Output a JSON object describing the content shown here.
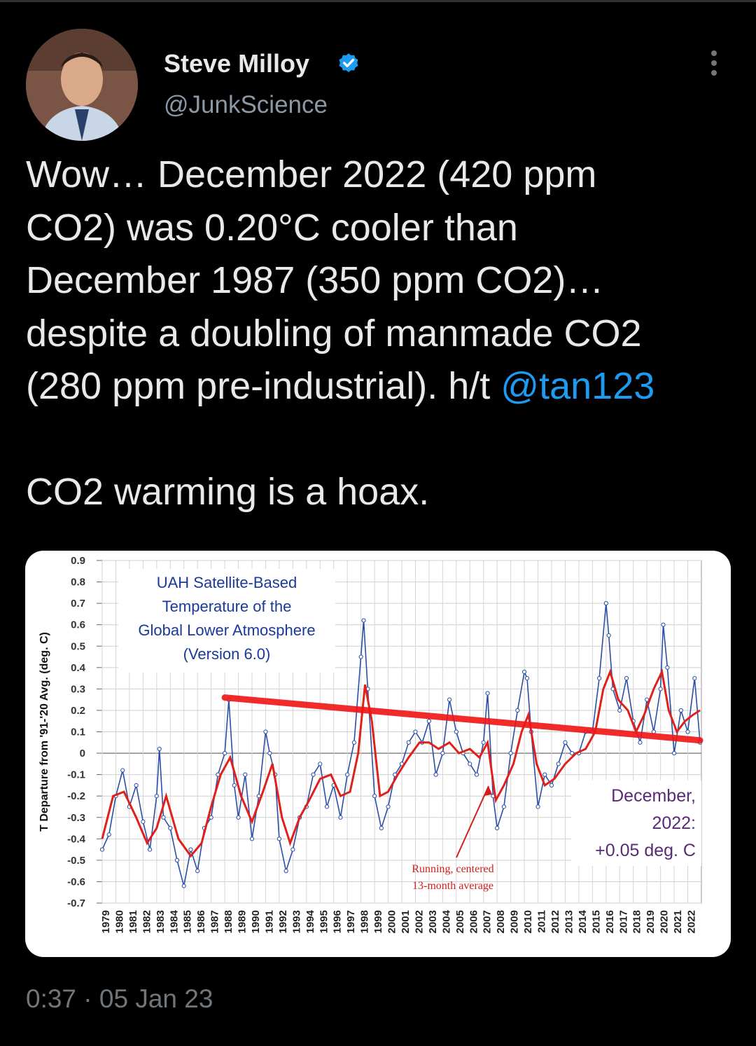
{
  "tweet": {
    "author_name": "Steve Milloy",
    "author_handle": "@JunkScience",
    "body_line1": "Wow… December 2022 (420 ppm",
    "body_line2": "CO2) was 0.20°C cooler than",
    "body_line3": "December 1987 (350 ppm CO2)…",
    "body_line4": "despite a doubling of manmade CO2",
    "body_line5_prefix": "(280 ppm pre-industrial). h/t ",
    "mention": "@tan123",
    "body_line7": "CO2 warming is a hoax.",
    "timestamp": "0:37 · 05 Jan 23"
  },
  "icons": {
    "verified": "verified-badge-icon",
    "more": "more-options-icon"
  },
  "colors": {
    "background": "#000000",
    "text": "#e7e9ea",
    "secondary": "#71767b",
    "link": "#1d9bf0",
    "verified": "#1d9bf0"
  },
  "chart_data": {
    "type": "line",
    "title_lines": [
      "UAH Satellite-Based",
      "Temperature of the",
      "Global Lower Atmosphere",
      "(Version 6.0)"
    ],
    "ylabel": "T Departure from '91-'20 Avg. (deg. C)",
    "ylim": [
      -0.7,
      0.9
    ],
    "yticks": [
      "0.9",
      "0.8",
      "0.7",
      "0.6",
      "0.5",
      "0.4",
      "0.3",
      "0.2",
      "0.1",
      "0",
      "-0.1",
      "-0.2",
      "-0.3",
      "-0.4",
      "-0.5",
      "-0.6",
      "-0.7"
    ],
    "xlim": [
      1979,
      2023
    ],
    "xticks": [
      "1979",
      "1980",
      "1981",
      "1982",
      "1983",
      "1984",
      "1985",
      "1986",
      "1987",
      "1988",
      "1989",
      "1990",
      "1991",
      "1992",
      "1993",
      "1994",
      "1995",
      "1996",
      "1997",
      "1998",
      "1999",
      "2000",
      "2001",
      "2002",
      "2003",
      "2004",
      "2005",
      "2006",
      "2007",
      "2008",
      "2009",
      "2010",
      "2011",
      "2012",
      "2013",
      "2014",
      "2015",
      "2016",
      "2017",
      "2018",
      "2019",
      "2020",
      "2021",
      "2022"
    ],
    "grid": true,
    "series": [
      {
        "name": "",
        "color": "#2a4fa8",
        "x": [
          1979.0,
          1979.5,
          1980.0,
          1980.5,
          1981.0,
          1981.5,
          1982.0,
          1982.5,
          1983.0,
          1983.2,
          1983.5,
          1984.0,
          1984.5,
          1985.0,
          1985.5,
          1986.0,
          1986.5,
          1987.0,
          1987.5,
          1988.0,
          1988.3,
          1988.7,
          1989.0,
          1989.5,
          1990.0,
          1990.5,
          1991.0,
          1991.3,
          1991.7,
          1992.0,
          1992.5,
          1993.0,
          1993.5,
          1994.0,
          1994.5,
          1995.0,
          1995.5,
          1996.0,
          1996.5,
          1997.0,
          1997.5,
          1998.0,
          1998.2,
          1998.5,
          1999.0,
          1999.5,
          2000.0,
          2000.5,
          2001.0,
          2001.5,
          2002.0,
          2002.5,
          2003.0,
          2003.5,
          2004.0,
          2004.5,
          2005.0,
          2005.5,
          2006.0,
          2006.5,
          2007.0,
          2007.3,
          2007.7,
          2008.0,
          2008.5,
          2009.0,
          2009.5,
          2010.0,
          2010.2,
          2010.5,
          2011.0,
          2011.5,
          2012.0,
          2012.5,
          2013.0,
          2013.5,
          2014.0,
          2014.5,
          2015.0,
          2015.5,
          2016.0,
          2016.2,
          2016.5,
          2017.0,
          2017.5,
          2018.0,
          2018.5,
          2019.0,
          2019.5,
          2020.0,
          2020.2,
          2020.5,
          2021.0,
          2021.5,
          2022.0,
          2022.5,
          2022.9
        ],
        "values": [
          -0.45,
          -0.38,
          -0.2,
          -0.08,
          -0.25,
          -0.15,
          -0.32,
          -0.45,
          -0.2,
          0.02,
          -0.3,
          -0.35,
          -0.5,
          -0.62,
          -0.45,
          -0.55,
          -0.35,
          -0.3,
          -0.1,
          0.0,
          0.25,
          -0.15,
          -0.3,
          -0.1,
          -0.4,
          -0.2,
          0.1,
          0.0,
          -0.1,
          -0.4,
          -0.55,
          -0.45,
          -0.3,
          -0.25,
          -0.1,
          -0.05,
          -0.25,
          -0.15,
          -0.3,
          -0.1,
          0.05,
          0.45,
          0.62,
          0.3,
          -0.2,
          -0.35,
          -0.25,
          -0.1,
          -0.05,
          0.05,
          0.1,
          0.05,
          0.15,
          -0.1,
          0.0,
          0.25,
          0.1,
          0.0,
          -0.05,
          -0.1,
          0.05,
          0.28,
          -0.2,
          -0.35,
          -0.25,
          0.0,
          0.2,
          0.38,
          0.35,
          0.1,
          -0.25,
          -0.1,
          -0.15,
          -0.05,
          0.05,
          0.0,
          0.0,
          0.1,
          0.1,
          0.35,
          0.7,
          0.55,
          0.3,
          0.2,
          0.35,
          0.15,
          0.05,
          0.25,
          0.1,
          0.3,
          0.6,
          0.4,
          0.0,
          0.2,
          0.1,
          0.35,
          0.05
        ]
      },
      {
        "name": "Running, centered 13-month average",
        "color": "#e0201b",
        "x": [
          1979.0,
          1979.8,
          1980.6,
          1981.5,
          1982.3,
          1983.0,
          1983.7,
          1984.6,
          1985.5,
          1986.3,
          1987.0,
          1987.7,
          1988.4,
          1989.2,
          1990.0,
          1990.8,
          1991.5,
          1992.2,
          1992.8,
          1993.5,
          1994.2,
          1995.0,
          1995.8,
          1996.5,
          1997.2,
          1997.8,
          1998.3,
          1998.8,
          1999.4,
          2000.0,
          2000.7,
          2001.5,
          2002.3,
          2003.0,
          2003.7,
          2004.5,
          2005.2,
          2006.0,
          2006.7,
          2007.3,
          2007.9,
          2008.5,
          2009.2,
          2009.8,
          2010.3,
          2010.9,
          2011.5,
          2012.2,
          2013.0,
          2013.8,
          2014.5,
          2015.2,
          2015.8,
          2016.3,
          2016.9,
          2017.6,
          2018.2,
          2018.8,
          2019.5,
          2020.1,
          2020.6,
          2021.2,
          2021.8,
          2022.4,
          2022.9
        ],
        "values": [
          -0.4,
          -0.2,
          -0.18,
          -0.3,
          -0.42,
          -0.35,
          -0.2,
          -0.4,
          -0.48,
          -0.42,
          -0.25,
          -0.1,
          -0.02,
          -0.2,
          -0.32,
          -0.18,
          -0.05,
          -0.3,
          -0.42,
          -0.3,
          -0.22,
          -0.12,
          -0.1,
          -0.2,
          -0.18,
          0.0,
          0.32,
          0.15,
          -0.2,
          -0.18,
          -0.1,
          -0.02,
          0.05,
          0.05,
          0.02,
          0.05,
          0.0,
          0.02,
          -0.02,
          0.05,
          -0.22,
          -0.15,
          -0.05,
          0.1,
          0.18,
          -0.05,
          -0.15,
          -0.12,
          -0.05,
          0.0,
          0.02,
          0.1,
          0.3,
          0.38,
          0.25,
          0.2,
          0.1,
          0.18,
          0.3,
          0.38,
          0.2,
          0.1,
          0.15,
          0.18,
          0.2
        ]
      }
    ],
    "trendline": {
      "x": [
        1988.0,
        2022.9
      ],
      "values": [
        0.26,
        0.06
      ],
      "color": "#f01414"
    },
    "annotations": {
      "december_label_lines": [
        "December,",
        "2022:",
        "+0.05 deg. C"
      ],
      "average_label_lines": [
        "Running, centered",
        "13-month average"
      ]
    }
  }
}
